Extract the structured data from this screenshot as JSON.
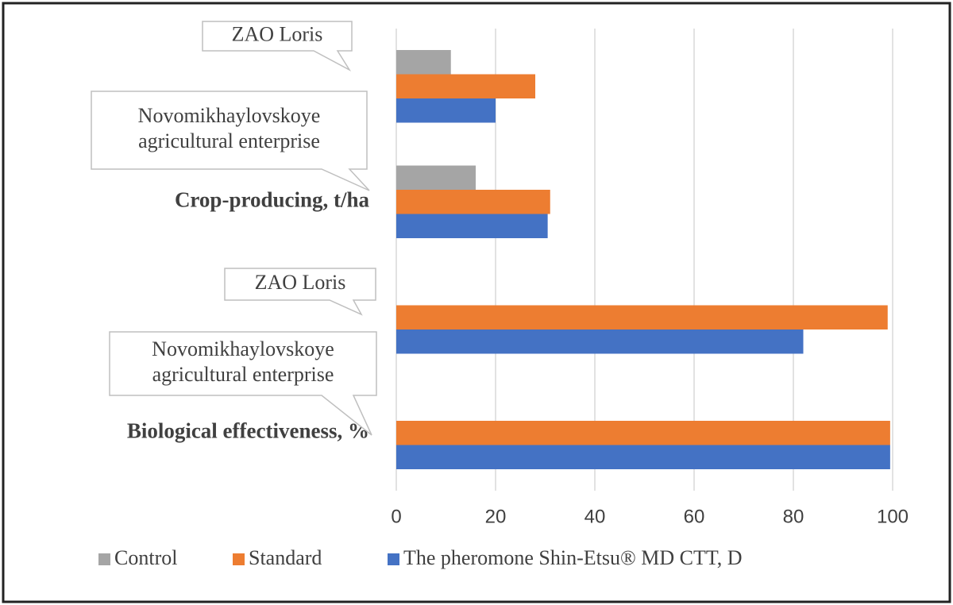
{
  "chart_data": {
    "type": "barh",
    "categories": [
      null,
      "Crop-producing, t/ha",
      null,
      "Biological effectiveness, %"
    ],
    "series": [
      {
        "name": "Control",
        "color": "#a5a5a5",
        "values": [
          11,
          16,
          null,
          null
        ]
      },
      {
        "name": "Standard",
        "color": "#ed7d31",
        "values": [
          28,
          31,
          99,
          99.5
        ]
      },
      {
        "name": "The pheromone Shin-Etsu® MD CTT, D",
        "color": "#4472c4",
        "values": [
          20,
          30.5,
          82,
          99.5
        ]
      }
    ],
    "annotations": [
      {
        "lines": [
          "ZAO Loris"
        ]
      },
      {
        "lines": [
          "Novomikhaylovskoye",
          "agricultural enterprise"
        ]
      },
      {
        "lines": [
          "ZAO Loris"
        ]
      },
      {
        "lines": [
          "Novomikhaylovskoye",
          "agricultural enterprise"
        ]
      }
    ],
    "xlim": [
      0,
      100
    ],
    "xticks": [
      0,
      20,
      40,
      60,
      80,
      100
    ],
    "grid": true,
    "legend": "bottom"
  }
}
